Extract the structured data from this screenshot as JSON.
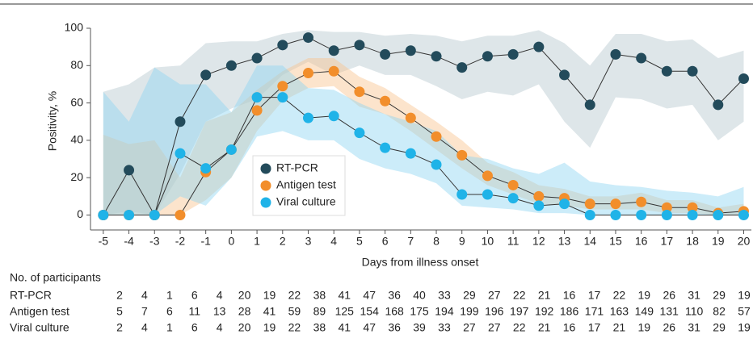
{
  "chart_data": {
    "type": "line",
    "y_label": "Positivity, %",
    "x_label": "Days from illness onset",
    "x": [
      -5,
      -4,
      -3,
      -2,
      -1,
      0,
      1,
      2,
      3,
      4,
      5,
      6,
      7,
      8,
      9,
      10,
      11,
      12,
      13,
      14,
      15,
      16,
      17,
      18,
      19,
      20
    ],
    "xlim": [
      -5.5,
      20.3
    ],
    "xticks": [
      -5,
      -4,
      -3,
      -2,
      -1,
      0,
      1,
      2,
      3,
      4,
      5,
      6,
      7,
      8,
      9,
      10,
      11,
      12,
      13,
      14,
      15,
      16,
      17,
      18,
      19,
      20
    ],
    "ylim": [
      -8,
      100
    ],
    "yticks": [
      0,
      20,
      40,
      60,
      80,
      100
    ],
    "legend": "center-left",
    "series": [
      {
        "name": "RT-PCR",
        "color": "#234b5b",
        "band_color": "#b5c8cf",
        "values": [
          0,
          24,
          0,
          50,
          75,
          80,
          84,
          91,
          95,
          88,
          91,
          86,
          88,
          85,
          79,
          85,
          86,
          90,
          75,
          59,
          86,
          84,
          77,
          77,
          59,
          73
        ],
        "upper": [
          66,
          70,
          79,
          80,
          92,
          93,
          93,
          97,
          99,
          98,
          98,
          96,
          97,
          96,
          93,
          96,
          96,
          99,
          92,
          80,
          97,
          97,
          93,
          94,
          84,
          88
        ],
        "lower": [
          0,
          2,
          0,
          22,
          50,
          57,
          62,
          75,
          82,
          75,
          80,
          75,
          75,
          69,
          62,
          66,
          64,
          70,
          50,
          36,
          63,
          62,
          57,
          59,
          40,
          50
        ]
      },
      {
        "name": "Antigen test",
        "color": "#f28e2b",
        "band_color": "#f9c48f",
        "values": [
          0,
          0,
          0,
          0,
          23,
          35,
          56,
          69,
          76,
          77,
          66,
          61,
          52,
          42,
          32,
          21,
          16,
          10,
          9,
          6,
          6,
          7,
          4,
          4,
          1,
          2
        ],
        "upper": [
          43,
          38,
          40,
          20,
          50,
          55,
          67,
          77,
          84,
          84,
          74,
          68,
          59,
          50,
          40,
          28,
          23,
          16,
          14,
          10,
          10,
          12,
          8,
          8,
          4,
          6
        ],
        "lower": [
          0,
          0,
          0,
          0,
          8,
          20,
          45,
          61,
          68,
          69,
          58,
          54,
          45,
          35,
          25,
          16,
          11,
          6,
          5,
          3,
          3,
          3,
          1,
          1,
          0,
          0
        ]
      },
      {
        "name": "Viral culture",
        "color": "#1fb3e8",
        "band_color": "#8fd5f1",
        "values": [
          0,
          0,
          0,
          33,
          25,
          35,
          63,
          63,
          52,
          53,
          44,
          36,
          33,
          27,
          11,
          11,
          9,
          5,
          6,
          0,
          0,
          0,
          0,
          0,
          0,
          0
        ],
        "upper": [
          66,
          50,
          79,
          70,
          70,
          55,
          80,
          80,
          68,
          67,
          60,
          54,
          50,
          45,
          32,
          30,
          25,
          22,
          28,
          18,
          16,
          15,
          13,
          12,
          10,
          15
        ],
        "lower": [
          0,
          0,
          0,
          10,
          5,
          20,
          42,
          45,
          40,
          40,
          30,
          25,
          22,
          17,
          5,
          4,
          3,
          1,
          1,
          0,
          0,
          0,
          0,
          0,
          0,
          0
        ]
      }
    ]
  },
  "participants": {
    "title": "No. of participants",
    "rows": [
      {
        "label": "RT-PCR",
        "values": [
          2,
          4,
          1,
          6,
          4,
          20,
          19,
          22,
          38,
          41,
          47,
          36,
          40,
          33,
          29,
          27,
          22,
          21,
          16,
          17,
          22,
          19,
          26,
          31,
          29,
          19
        ]
      },
      {
        "label": "Antigen test",
        "values": [
          5,
          7,
          6,
          11,
          13,
          28,
          41,
          59,
          89,
          125,
          154,
          168,
          175,
          194,
          199,
          196,
          197,
          192,
          186,
          171,
          163,
          149,
          131,
          110,
          82,
          57
        ]
      },
      {
        "label": "Viral culture",
        "values": [
          2,
          4,
          1,
          6,
          4,
          20,
          19,
          22,
          38,
          41,
          47,
          36,
          39,
          33,
          27,
          27,
          22,
          21,
          16,
          17,
          21,
          19,
          26,
          31,
          29,
          19
        ]
      }
    ]
  }
}
